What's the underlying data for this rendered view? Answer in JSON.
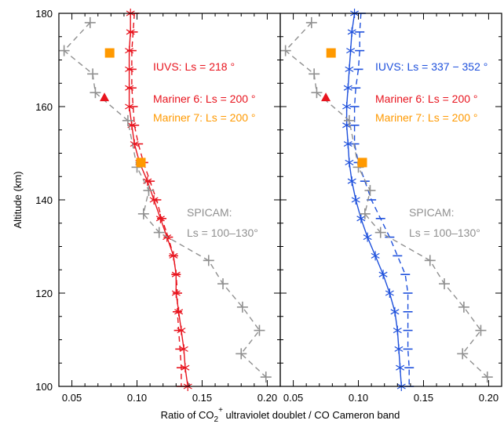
{
  "chart_data": [
    {
      "type": "line",
      "panel": "left",
      "xlim": [
        0.04,
        0.21
      ],
      "ylim": [
        100,
        180
      ],
      "x_ticks": [
        "0.05",
        "0.10",
        "0.15",
        "0.20"
      ],
      "y_ticks": [
        "100",
        "120",
        "140",
        "160",
        "180"
      ],
      "series": [
        {
          "name": "IUVS: Ls = 218 °",
          "style": "solid",
          "color": "#e8141e",
          "marker": "star",
          "points": [
            [
              0.095,
              180
            ],
            [
              0.095,
              176
            ],
            [
              0.094,
              172
            ],
            [
              0.094,
              168
            ],
            [
              0.094,
              164
            ],
            [
              0.094,
              160
            ],
            [
              0.096,
              156
            ],
            [
              0.098,
              152
            ],
            [
              0.102,
              148
            ],
            [
              0.108,
              144
            ],
            [
              0.113,
              140
            ],
            [
              0.118,
              136
            ],
            [
              0.123,
              132
            ],
            [
              0.128,
              128
            ],
            [
              0.13,
              124
            ],
            [
              0.13,
              120
            ],
            [
              0.132,
              116
            ],
            [
              0.134,
              112
            ],
            [
              0.136,
              108
            ],
            [
              0.137,
              104
            ],
            [
              0.139,
              100
            ]
          ]
        },
        {
          "name": "IUVS: Ls = 218 ° (dashed)",
          "style": "dashed",
          "color": "#e8141e",
          "marker": "bar",
          "points": [
            [
              0.098,
              180
            ],
            [
              0.097,
              176
            ],
            [
              0.096,
              172
            ],
            [
              0.096,
              168
            ],
            [
              0.096,
              164
            ],
            [
              0.097,
              160
            ],
            [
              0.098,
              156
            ],
            [
              0.101,
              152
            ],
            [
              0.105,
              148
            ],
            [
              0.11,
              144
            ],
            [
              0.115,
              140
            ],
            [
              0.119,
              136
            ],
            [
              0.124,
              132
            ],
            [
              0.128,
              128
            ],
            [
              0.13,
              124
            ],
            [
              0.131,
              120
            ],
            [
              0.131,
              116
            ],
            [
              0.132,
              112
            ],
            [
              0.133,
              108
            ],
            [
              0.134,
              104
            ],
            [
              0.134,
              100
            ]
          ]
        },
        {
          "name": "SPICAM: Ls = 100–130°",
          "style": "dashed",
          "color": "#909090",
          "marker": "plus",
          "points": [
            [
              0.064,
              178
            ],
            [
              0.044,
              172
            ],
            [
              0.066,
              167
            ],
            [
              0.068,
              163
            ],
            [
              0.093,
              157
            ],
            [
              0.1,
              147
            ],
            [
              0.109,
              142
            ],
            [
              0.105,
              137
            ],
            [
              0.117,
              133
            ],
            [
              0.155,
              127
            ],
            [
              0.166,
              122
            ],
            [
              0.181,
              117
            ],
            [
              0.194,
              112
            ],
            [
              0.18,
              107
            ],
            [
              0.199,
              102
            ]
          ]
        },
        {
          "name": "Mariner 6: Ls = 200 °",
          "color": "#e8141e",
          "marker": "triangle",
          "points": [
            [
              0.075,
              162
            ]
          ]
        },
        {
          "name": "Mariner 7: Ls = 200 °",
          "color": "#ff9900",
          "marker": "square",
          "points": [
            [
              0.079,
              171.5
            ],
            [
              0.103,
              148
            ]
          ]
        }
      ],
      "annotations": [
        {
          "text": "IUVS: Ls = 218 °",
          "color": "#e8141e"
        },
        {
          "text": "Mariner 6: Ls = 200 °",
          "color": "#e8141e"
        },
        {
          "text": "Mariner 7: Ls = 200 °",
          "color": "#ff9900"
        },
        {
          "text": "SPICAM:",
          "color": "#909090"
        },
        {
          "text": "Ls = 100–130°",
          "color": "#909090"
        }
      ]
    },
    {
      "type": "line",
      "panel": "right",
      "xlim": [
        0.04,
        0.21
      ],
      "ylim": [
        100,
        180
      ],
      "x_ticks": [
        "0.05",
        "0.10",
        "0.15",
        "0.20"
      ],
      "y_ticks": [],
      "series": [
        {
          "name": "IUVS: Ls = 337 − 352 °",
          "style": "solid",
          "color": "#1e50dc",
          "marker": "star",
          "points": [
            [
              0.097,
              180
            ],
            [
              0.095,
              176
            ],
            [
              0.094,
              172
            ],
            [
              0.093,
              168
            ],
            [
              0.092,
              164
            ],
            [
              0.091,
              160
            ],
            [
              0.091,
              156
            ],
            [
              0.092,
              152
            ],
            [
              0.093,
              148
            ],
            [
              0.095,
              144
            ],
            [
              0.098,
              140
            ],
            [
              0.102,
              136
            ],
            [
              0.107,
              132
            ],
            [
              0.113,
              128
            ],
            [
              0.119,
              124
            ],
            [
              0.124,
              120
            ],
            [
              0.128,
              116
            ],
            [
              0.13,
              112
            ],
            [
              0.131,
              108
            ],
            [
              0.132,
              104
            ],
            [
              0.133,
              100
            ]
          ]
        },
        {
          "name": "IUVS: Ls = 337 − 352 ° (dashed)",
          "style": "dashed",
          "color": "#1e50dc",
          "marker": "bar",
          "points": [
            [
              0.102,
              180
            ],
            [
              0.101,
              176
            ],
            [
              0.101,
              172
            ],
            [
              0.1,
              168
            ],
            [
              0.098,
              164
            ],
            [
              0.097,
              160
            ],
            [
              0.097,
              156
            ],
            [
              0.097,
              152
            ],
            [
              0.1,
              148
            ],
            [
              0.105,
              144
            ],
            [
              0.11,
              140
            ],
            [
              0.117,
              136
            ],
            [
              0.124,
              132
            ],
            [
              0.13,
              128
            ],
            [
              0.136,
              124
            ],
            [
              0.138,
              120
            ],
            [
              0.138,
              116
            ],
            [
              0.138,
              112
            ],
            [
              0.138,
              108
            ],
            [
              0.139,
              104
            ],
            [
              0.139,
              100
            ]
          ]
        },
        {
          "name": "SPICAM: Ls = 100–130°",
          "style": "dashed",
          "color": "#909090",
          "marker": "plus",
          "points": [
            [
              0.064,
              178
            ],
            [
              0.044,
              172
            ],
            [
              0.066,
              167
            ],
            [
              0.068,
              163
            ],
            [
              0.093,
              157
            ],
            [
              0.1,
              147
            ],
            [
              0.109,
              142
            ],
            [
              0.105,
              137
            ],
            [
              0.117,
              133
            ],
            [
              0.155,
              127
            ],
            [
              0.166,
              122
            ],
            [
              0.181,
              117
            ],
            [
              0.194,
              112
            ],
            [
              0.18,
              107
            ],
            [
              0.199,
              102
            ]
          ]
        },
        {
          "name": "Mariner 6: Ls = 200 °",
          "color": "#e8141e",
          "marker": "triangle",
          "points": [
            [
              0.075,
              162
            ]
          ]
        },
        {
          "name": "Mariner 7: Ls = 200 °",
          "color": "#ff9900",
          "marker": "square",
          "points": [
            [
              0.079,
              171.5
            ],
            [
              0.103,
              148
            ]
          ]
        }
      ],
      "annotations": [
        {
          "text": "IUVS: Ls = 337 − 352 °",
          "color": "#1e50dc"
        },
        {
          "text": "Mariner 6: Ls = 200 °",
          "color": "#e8141e"
        },
        {
          "text": "Mariner 7: Ls = 200 °",
          "color": "#ff9900"
        },
        {
          "text": "SPICAM:",
          "color": "#909090"
        },
        {
          "text": "Ls = 100–130°",
          "color": "#909090"
        }
      ]
    }
  ],
  "labels": {
    "ylabel": "Altitude (km)",
    "xlabel_pre": "Ratio of CO",
    "xlabel_sub": "2",
    "xlabel_sup": "+",
    "xlabel_post": " ultraviolet doublet / CO Cameron band"
  }
}
